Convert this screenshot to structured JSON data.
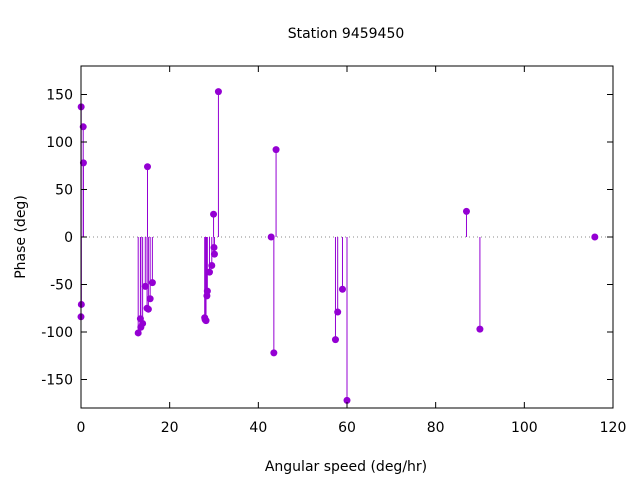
{
  "chart_data": {
    "type": "stem",
    "title": "Station 9459450",
    "xlabel": "Angular speed (deg/hr)",
    "ylabel": "Phase (deg)",
    "xlim": [
      0,
      120
    ],
    "ylim": [
      -180,
      180
    ],
    "xticks": [
      0,
      20,
      40,
      60,
      80,
      100,
      120
    ],
    "yticks": [
      -150,
      -100,
      -50,
      0,
      50,
      100,
      150
    ],
    "grid": false,
    "legend": "none",
    "zero_line": "dotted",
    "color": "#9400d3",
    "points": [
      [
        0.0,
        -84
      ],
      [
        0.04,
        137
      ],
      [
        0.08,
        -71
      ],
      [
        0.5,
        116
      ],
      [
        0.55,
        78
      ],
      [
        12.9,
        -101
      ],
      [
        13.4,
        -86
      ],
      [
        13.5,
        -95
      ],
      [
        13.9,
        -91
      ],
      [
        14.5,
        -52
      ],
      [
        14.9,
        -75
      ],
      [
        15.0,
        74
      ],
      [
        15.2,
        -76
      ],
      [
        15.6,
        -65
      ],
      [
        16.1,
        -48
      ],
      [
        27.9,
        -85
      ],
      [
        28.0,
        -87
      ],
      [
        28.2,
        -88
      ],
      [
        28.4,
        -62
      ],
      [
        28.5,
        -57
      ],
      [
        28.98,
        -37
      ],
      [
        29.5,
        -30
      ],
      [
        29.9,
        24
      ],
      [
        30.0,
        -11
      ],
      [
        30.1,
        -18
      ],
      [
        31.0,
        153
      ],
      [
        42.9,
        0
      ],
      [
        43.5,
        -122
      ],
      [
        44.0,
        92
      ],
      [
        57.4,
        -108
      ],
      [
        57.9,
        -79
      ],
      [
        58.98,
        -55
      ],
      [
        60.0,
        -172
      ],
      [
        86.95,
        27
      ],
      [
        89.98,
        -97
      ],
      [
        115.9,
        0
      ]
    ]
  }
}
